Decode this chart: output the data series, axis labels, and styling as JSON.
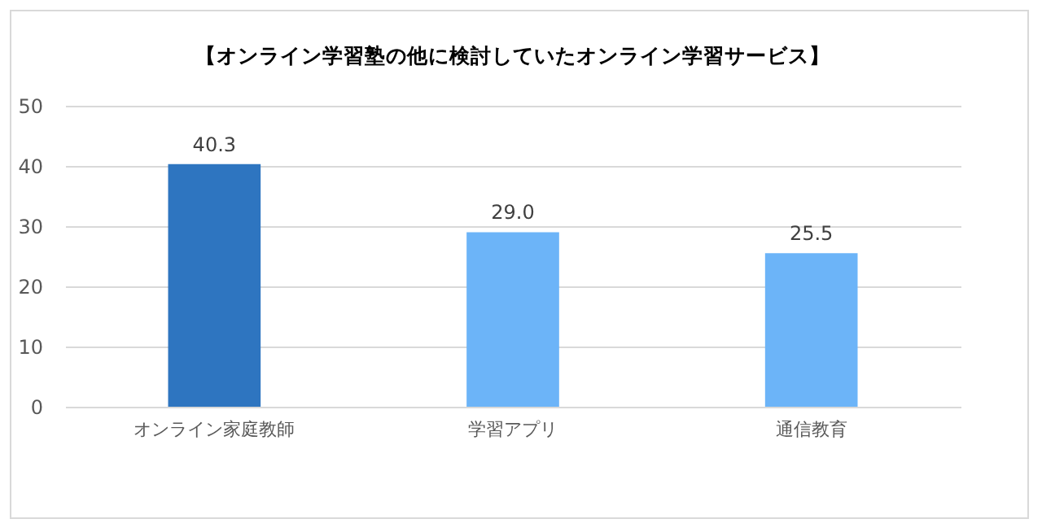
{
  "chart_data": {
    "type": "bar",
    "title": "【オンライン学習塾の他に検討していたオンライン学習サービス】",
    "categories": [
      "オンライン家庭教師",
      "学習アプリ",
      "通信教育"
    ],
    "values": [
      40.3,
      29.0,
      25.5
    ],
    "colors": [
      "#2e75c0",
      "#6cb4f8",
      "#6cb4f8"
    ],
    "value_labels": [
      "40.3",
      "29.0",
      "25.5"
    ],
    "ylim": [
      0,
      50
    ],
    "yticks": [
      0,
      10,
      20,
      30,
      40,
      50
    ],
    "grid": "y"
  }
}
